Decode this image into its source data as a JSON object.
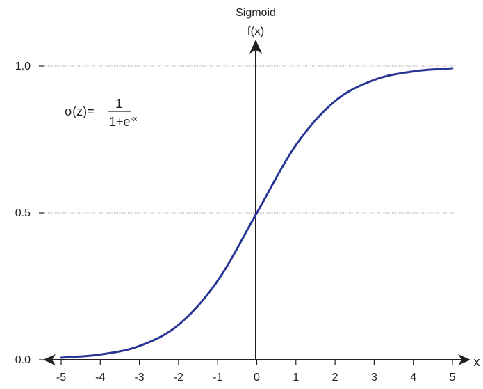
{
  "chart_data": {
    "type": "line",
    "title": "Sigmoid",
    "xlabel": "x",
    "ylabel": "f(x)",
    "xlim": [
      -5,
      5
    ],
    "ylim": [
      0,
      1
    ],
    "x_ticks": [
      "-5",
      "-4",
      "-3",
      "-2",
      "-1",
      "0",
      "1",
      "2",
      "3",
      "4",
      "5"
    ],
    "y_ticks": [
      "0.0",
      "0.5",
      "1.0"
    ],
    "grid": "horizontal dotted at 0.5 and 1.0",
    "series": [
      {
        "x": [
          -5,
          -4,
          -3,
          -2,
          -1,
          0,
          1,
          2,
          3,
          4,
          5
        ],
        "y": [
          0.007,
          0.018,
          0.047,
          0.119,
          0.269,
          0.5,
          0.731,
          0.881,
          0.953,
          0.982,
          0.993
        ],
        "color": "#283593"
      }
    ],
    "annotation": {
      "lhs": "σ(z)=",
      "numerator": "1",
      "denominator_base": "1+e",
      "denominator_exponent": "-x"
    }
  }
}
